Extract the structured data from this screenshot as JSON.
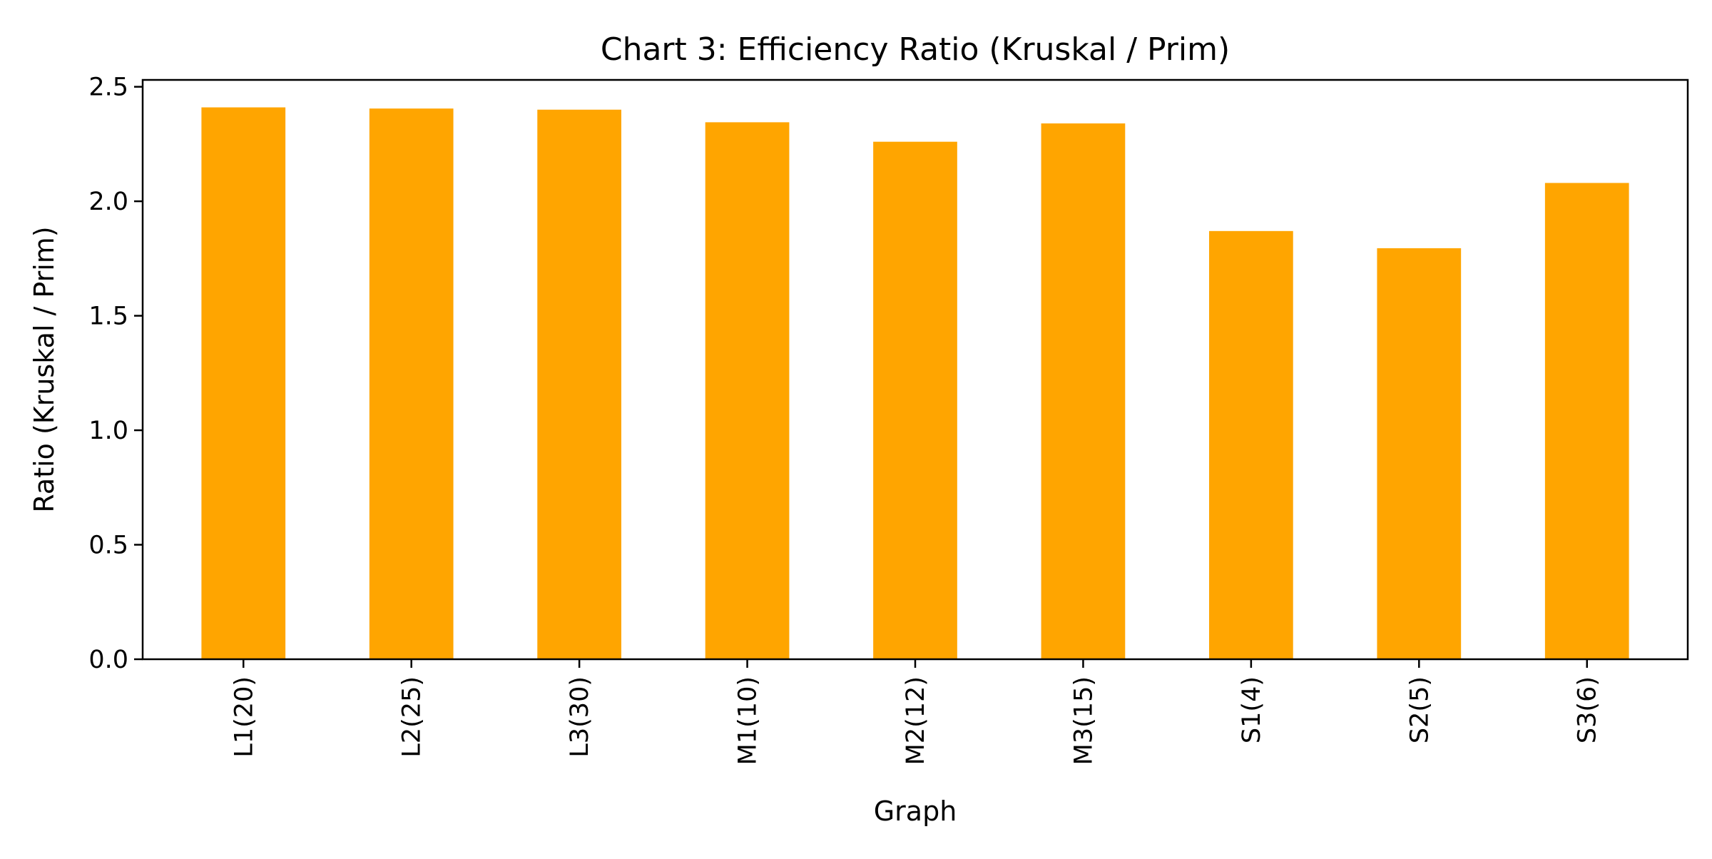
{
  "chart_data": {
    "type": "bar",
    "title": "Chart 3: Efficiency Ratio (Kruskal / Prim)",
    "xlabel": "Graph",
    "ylabel": "Ratio (Kruskal / Prim)",
    "categories": [
      "L1(20)",
      "L2(25)",
      "L3(30)",
      "M1(10)",
      "M2(12)",
      "M3(15)",
      "S1(4)",
      "S2(5)",
      "S3(6)"
    ],
    "values": [
      2.41,
      2.405,
      2.4,
      2.345,
      2.26,
      2.34,
      1.87,
      1.795,
      2.08
    ],
    "ylim": [
      0,
      2.53
    ],
    "yticks": [
      "0.0",
      "0.5",
      "1.0",
      "1.5",
      "2.0",
      "2.5"
    ],
    "bar_color": "#ffa500",
    "grid": false,
    "legend": "none"
  }
}
